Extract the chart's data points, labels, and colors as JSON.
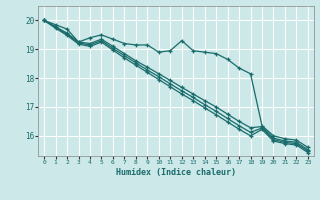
{
  "title": "",
  "xlabel": "Humidex (Indice chaleur)",
  "ylabel": "",
  "background_color": "#cce8e8",
  "grid_color": "#ffffff",
  "line_color": "#1a6b6b",
  "xlim": [
    -0.5,
    23.5
  ],
  "ylim": [
    15.3,
    20.5
  ],
  "yticks": [
    16,
    17,
    18,
    19,
    20
  ],
  "xticks": [
    0,
    1,
    2,
    3,
    4,
    5,
    6,
    7,
    8,
    9,
    10,
    11,
    12,
    13,
    14,
    15,
    16,
    17,
    18,
    19,
    20,
    21,
    22,
    23
  ],
  "series": [
    {
      "x": [
        0,
        1,
        2,
        3,
        4,
        5,
        6,
        7,
        8,
        9,
        10,
        11,
        12,
        13,
        14,
        15,
        16,
        17,
        18,
        19,
        20,
        21,
        22,
        23
      ],
      "y": [
        20.0,
        19.85,
        19.7,
        19.25,
        19.4,
        19.5,
        19.35,
        19.2,
        19.15,
        19.15,
        18.9,
        18.95,
        19.3,
        18.95,
        18.9,
        18.85,
        18.65,
        18.35,
        18.15,
        16.35,
        16.0,
        15.9,
        15.85,
        15.6
      ]
    },
    {
      "x": [
        0,
        1,
        2,
        3,
        4,
        5,
        6,
        7,
        8,
        9,
        10,
        11,
        12,
        13,
        14,
        15,
        16,
        17,
        18,
        19,
        20,
        21,
        22,
        23
      ],
      "y": [
        20.0,
        19.78,
        19.56,
        19.25,
        19.2,
        19.35,
        19.1,
        18.85,
        18.6,
        18.38,
        18.15,
        17.92,
        17.68,
        17.45,
        17.22,
        17.0,
        16.75,
        16.5,
        16.28,
        16.32,
        15.92,
        15.82,
        15.78,
        15.52
      ]
    },
    {
      "x": [
        0,
        1,
        2,
        3,
        4,
        5,
        6,
        7,
        8,
        9,
        10,
        11,
        12,
        13,
        14,
        15,
        16,
        17,
        18,
        19,
        20,
        21,
        22,
        23
      ],
      "y": [
        20.0,
        19.76,
        19.52,
        19.22,
        19.15,
        19.3,
        19.03,
        18.78,
        18.53,
        18.28,
        18.05,
        17.8,
        17.56,
        17.33,
        17.08,
        16.85,
        16.6,
        16.35,
        16.12,
        16.27,
        15.87,
        15.77,
        15.73,
        15.47
      ]
    },
    {
      "x": [
        0,
        1,
        2,
        3,
        4,
        5,
        6,
        7,
        8,
        9,
        10,
        11,
        12,
        13,
        14,
        15,
        16,
        17,
        18,
        19,
        20,
        21,
        22,
        23
      ],
      "y": [
        20.0,
        19.73,
        19.48,
        19.18,
        19.1,
        19.25,
        18.97,
        18.7,
        18.45,
        18.2,
        17.95,
        17.7,
        17.45,
        17.22,
        16.97,
        16.73,
        16.48,
        16.23,
        16.0,
        16.22,
        15.82,
        15.73,
        15.68,
        15.42
      ]
    }
  ]
}
